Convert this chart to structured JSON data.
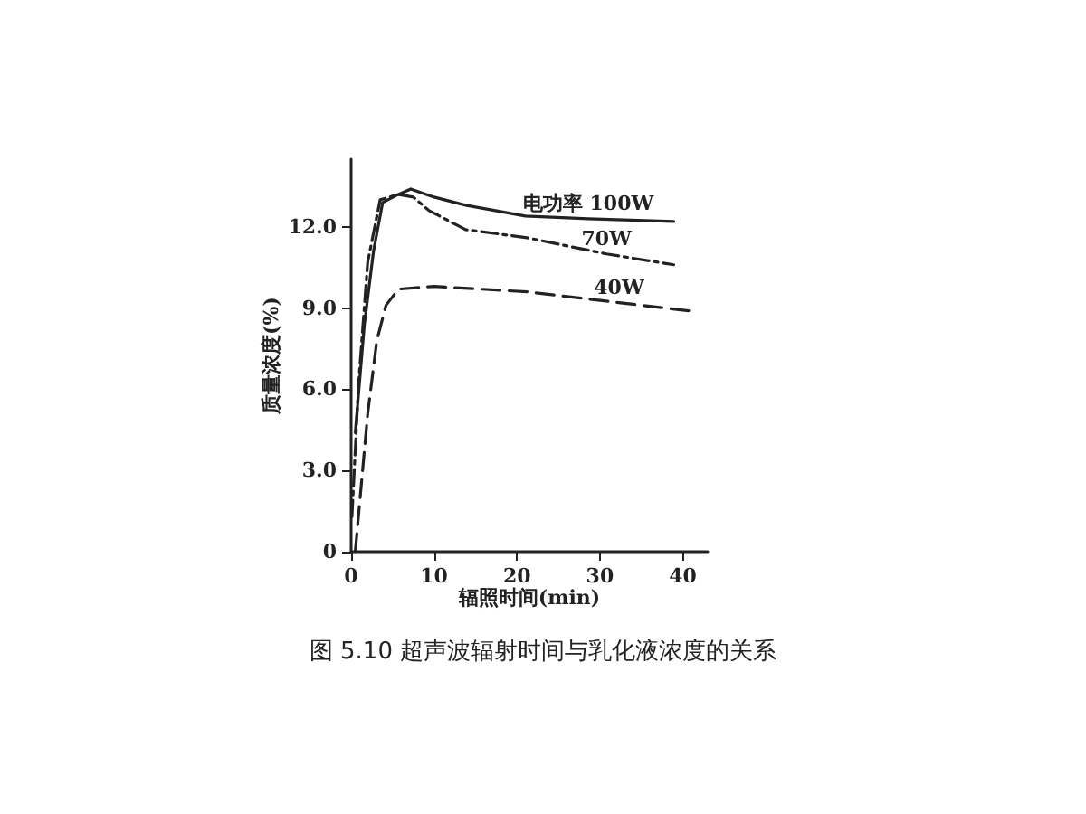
{
  "chart_data": {
    "type": "line",
    "title": "图 5.10 超声波辐射时间与乳化液浓度的关系",
    "xlabel": "辐照时间(min)",
    "ylabel": "质量浓度(%)",
    "xlim": [
      0,
      43
    ],
    "xticks": [
      0,
      10,
      20,
      30,
      40
    ],
    "ylim": [
      0,
      14.5
    ],
    "yticks": [
      {
        "value": 0,
        "label": "0"
      },
      {
        "value": 3,
        "label": "3.0"
      },
      {
        "value": 6,
        "label": "6.0"
      },
      {
        "value": 9,
        "label": "9.0"
      },
      {
        "value": 12,
        "label": "12.0"
      }
    ],
    "grid": false,
    "legend": false,
    "marker": "none",
    "series": [
      {
        "name": "电功率 100W",
        "color": "#222222",
        "line_style": "solid",
        "x": [
          0.5,
          1.6,
          2.7,
          3.8,
          5.7,
          7.2,
          10,
          13.8,
          21,
          28.6,
          38.9
        ],
        "values": [
          4.4,
          8.4,
          11.1,
          12.9,
          13.2,
          13.4,
          13.1,
          12.8,
          12.4,
          12.3,
          12.2
        ]
      },
      {
        "name": "70W",
        "color": "#222222",
        "line_style": "dashdot",
        "x": [
          0.1,
          0.9,
          2,
          3.5,
          5.7,
          7.5,
          9.4,
          13.8,
          21.2,
          30.8,
          38.9
        ],
        "values": [
          1.3,
          6.2,
          10.7,
          13,
          13.2,
          13.1,
          12.6,
          11.9,
          11.6,
          11,
          10.6
        ]
      },
      {
        "name": "40W",
        "color": "#222222",
        "line_style": "dashed",
        "x": [
          0.5,
          2,
          3.1,
          4.2,
          5.7,
          10,
          21.2,
          32.3,
          40.7
        ],
        "values": [
          0,
          5.1,
          7.8,
          9.1,
          9.7,
          9.8,
          9.6,
          9.2,
          8.9
        ]
      }
    ]
  }
}
